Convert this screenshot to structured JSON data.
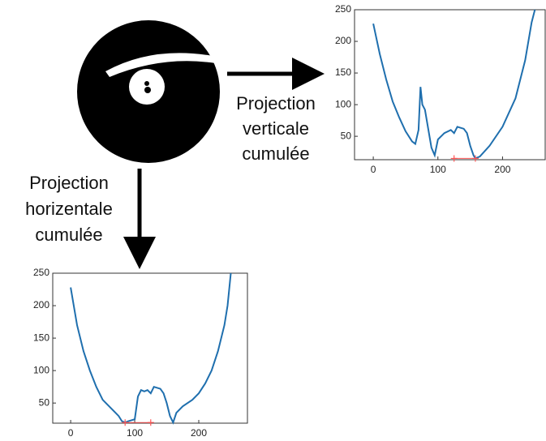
{
  "labels": {
    "vertical": [
      "Projection",
      "verticale",
      "cumulée"
    ],
    "horizontal": [
      "Projection",
      "horizentale",
      "cumulée"
    ]
  },
  "chart_data": [
    {
      "type": "line",
      "xlim": [
        -29,
        266
      ],
      "ylim": [
        13,
        250
      ],
      "xticks": [
        0,
        100,
        200
      ],
      "yticks": [
        50,
        100,
        150,
        200,
        250
      ],
      "series": [
        {
          "color": "#1f6fae",
          "x": [
            0,
            10,
            20,
            30,
            40,
            50,
            60,
            65,
            70,
            73,
            76,
            80,
            85,
            90,
            95,
            100,
            110,
            120,
            125,
            130,
            140,
            145,
            150,
            155,
            158,
            165,
            180,
            200,
            220,
            235,
            245,
            250
          ],
          "values": [
            228,
            180,
            140,
            105,
            80,
            58,
            42,
            38,
            60,
            128,
            100,
            92,
            62,
            32,
            20,
            45,
            55,
            60,
            55,
            65,
            62,
            55,
            35,
            20,
            15,
            18,
            35,
            65,
            110,
            170,
            230,
            250
          ]
        },
        {
          "color": "#ff5555",
          "marker": "+",
          "x": [
            125,
            158
          ],
          "values": [
            15,
            15
          ]
        }
      ]
    },
    {
      "type": "line",
      "xlim": [
        -28,
        276
      ],
      "ylim": [
        19,
        250
      ],
      "xticks": [
        0,
        100,
        200
      ],
      "yticks": [
        50,
        100,
        150,
        200,
        250
      ],
      "series": [
        {
          "color": "#1f6fae",
          "x": [
            0,
            10,
            20,
            30,
            40,
            50,
            60,
            70,
            75,
            80,
            85,
            90,
            100,
            105,
            110,
            115,
            120,
            125,
            130,
            140,
            145,
            150,
            155,
            160,
            165,
            175,
            190,
            200,
            210,
            220,
            230,
            240,
            245,
            250
          ],
          "values": [
            228,
            170,
            130,
            100,
            75,
            55,
            45,
            35,
            30,
            22,
            20,
            22,
            25,
            60,
            70,
            68,
            70,
            65,
            75,
            72,
            65,
            50,
            30,
            20,
            35,
            45,
            55,
            65,
            80,
            100,
            130,
            170,
            200,
            250
          ]
        },
        {
          "color": "#ff5555",
          "marker": "+",
          "x": [
            85,
            125
          ],
          "values": [
            20,
            20
          ]
        }
      ]
    }
  ]
}
